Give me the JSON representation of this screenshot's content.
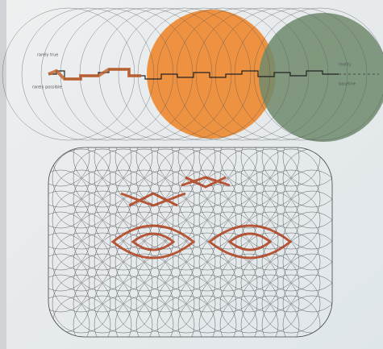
{
  "annotations": {
    "top_left": "rarely true",
    "bottom_left": "rarely possible",
    "right_top": "reality",
    "right_bottom": "baseline"
  }
}
